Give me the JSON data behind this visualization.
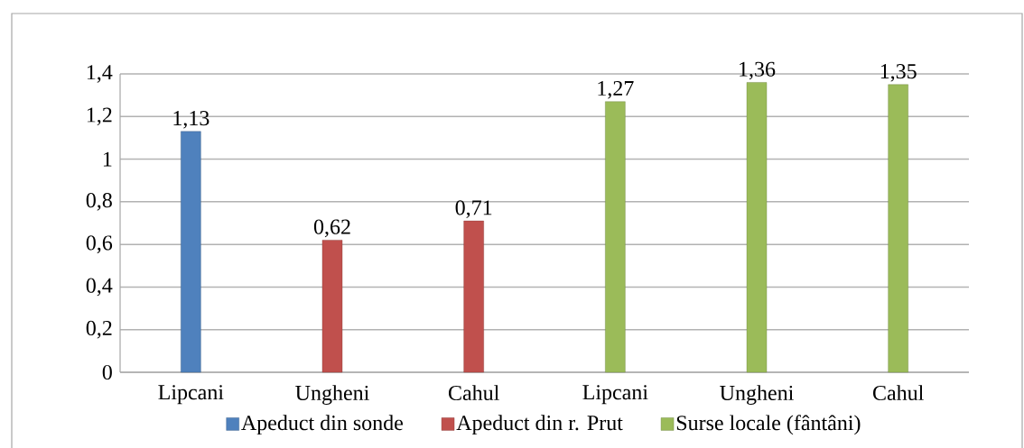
{
  "chart_data": {
    "type": "bar",
    "categories": [
      "Lipcani",
      "Ungheni",
      "Cahul",
      "Lipcani",
      "Ungheni",
      "Cahul"
    ],
    "series": [
      {
        "name": "Apeduct din sonde",
        "color": "#4f81bd",
        "values": [
          1.13,
          null,
          null,
          null,
          null,
          null
        ],
        "value_labels": [
          "1,13",
          null,
          null,
          null,
          null,
          null
        ]
      },
      {
        "name": "Apeduct din r. Prut",
        "color": "#c0504d",
        "values": [
          null,
          0.62,
          0.71,
          null,
          null,
          null
        ],
        "value_labels": [
          null,
          "0,62",
          "0,71",
          null,
          null,
          null
        ]
      },
      {
        "name": "Surse locale (fântâni)",
        "color": "#9bbb59",
        "values": [
          null,
          null,
          null,
          1.27,
          1.36,
          1.35
        ],
        "value_labels": [
          null,
          null,
          null,
          "1,27",
          "1,36",
          "1,35"
        ]
      }
    ],
    "ylim": [
      0,
      1.4
    ],
    "yticks": [
      0,
      {
        "value": 0.2,
        "label": "0,2"
      },
      {
        "value": 0.4,
        "label": "0,4"
      },
      {
        "value": 0.6,
        "label": "0,6"
      },
      {
        "value": 0.8,
        "label": "0,8"
      },
      1,
      {
        "value": 1.2,
        "label": "1,2"
      },
      {
        "value": 1.4,
        "label": "1,4"
      }
    ],
    "grid": "y",
    "legend": "bottom"
  }
}
